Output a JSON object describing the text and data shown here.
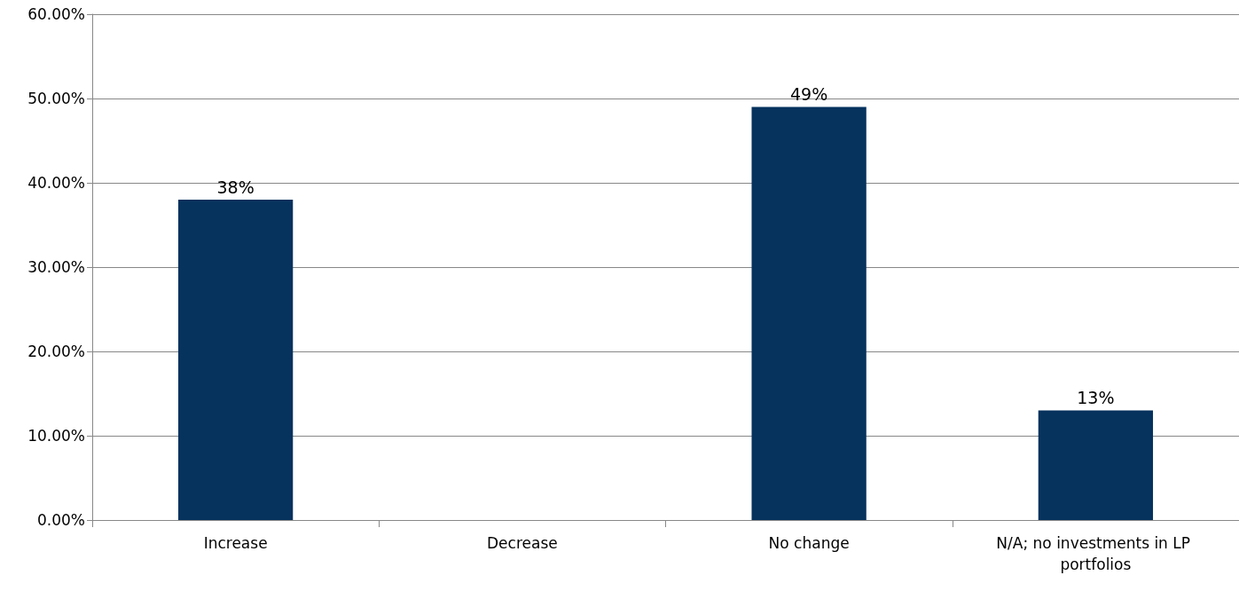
{
  "chart_data": {
    "type": "bar",
    "categories": [
      "Increase",
      "Decrease",
      "No change",
      "N/A; no investments in LP portfolios"
    ],
    "values": [
      38,
      0,
      49,
      13
    ],
    "value_labels": [
      "38%",
      null,
      "49%",
      "13%"
    ],
    "color": "#06325e",
    "ylim": [
      0,
      60
    ],
    "yticks": [
      {
        "value": 0,
        "label": "0.00%"
      },
      {
        "value": 10,
        "label": "10.00%"
      },
      {
        "value": 20,
        "label": "20.00%"
      },
      {
        "value": 30,
        "label": "30.00%"
      },
      {
        "value": 40,
        "label": "40.00%"
      },
      {
        "value": 50,
        "label": "50.00%"
      },
      {
        "value": 60,
        "label": "60.00%"
      }
    ],
    "grid": "y"
  }
}
